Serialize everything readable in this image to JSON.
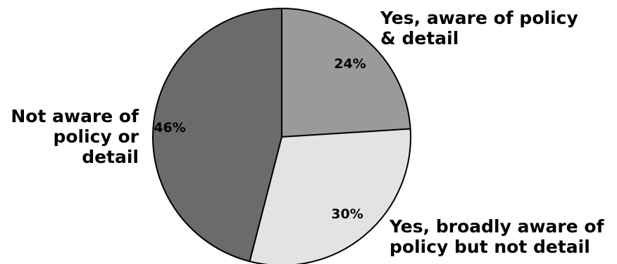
{
  "chart_data": {
    "type": "pie",
    "start_angle_deg": 0,
    "direction": "clockwise",
    "slices": [
      {
        "label_lines": [
          "Yes, aware of policy",
          "& detail"
        ],
        "value": 24,
        "value_label": "24%",
        "color": "#9a9a9a"
      },
      {
        "label_lines": [
          "Yes, broadly aware of",
          "policy but not detail"
        ],
        "value": 30,
        "value_label": "30%",
        "color": "#e3e3e3"
      },
      {
        "label_lines": [
          "Not aware of",
          "policy or",
          "detail"
        ],
        "value": 46,
        "value_label": "46%",
        "color": "#6b6b6b"
      }
    ],
    "edge_color": "#000000"
  }
}
